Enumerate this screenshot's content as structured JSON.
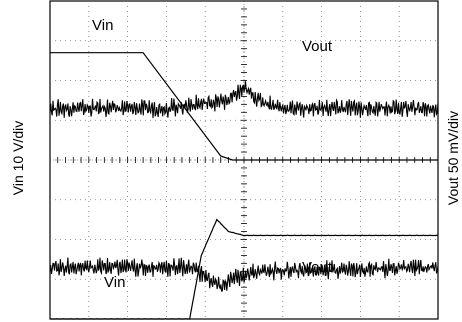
{
  "chart_data": {
    "type": "line",
    "title": "",
    "xlabel": "",
    "ylabel_left": "Vin 10 V/div",
    "ylabel_right": "Vout 50 mV/div",
    "grid": true,
    "grid_divisions": {
      "x": 10,
      "y": 8
    },
    "annotations": [
      "Vin",
      "Vout",
      "Vout",
      "Vin"
    ],
    "series": [
      {
        "name": "Vin",
        "panel": "top",
        "unit": "div",
        "x": [
          0,
          2.4,
          4.4,
          4.7,
          10
        ],
        "y": [
          6.7,
          6.7,
          4.1,
          4.0,
          4.0
        ]
      },
      {
        "name": "Vout",
        "panel": "top",
        "unit": "div",
        "x": [
          0,
          3.0,
          4.6,
          5.0,
          5.4,
          6.0,
          10
        ],
        "y": [
          5.3,
          5.3,
          5.5,
          5.8,
          5.5,
          5.3,
          5.3
        ]
      },
      {
        "name": "Vin",
        "panel": "bottom",
        "unit": "div",
        "x": [
          0,
          3.6,
          3.9,
          4.3,
          4.6,
          5.0,
          10
        ],
        "y": [
          0.0,
          0.0,
          1.6,
          2.5,
          2.2,
          2.1,
          2.1
        ]
      },
      {
        "name": "Vout",
        "panel": "bottom",
        "unit": "div",
        "x": [
          0,
          3.7,
          4.1,
          4.4,
          4.7,
          5.3,
          10
        ],
        "y": [
          1.3,
          1.3,
          1.0,
          0.8,
          1.0,
          1.2,
          1.3
        ]
      }
    ]
  }
}
